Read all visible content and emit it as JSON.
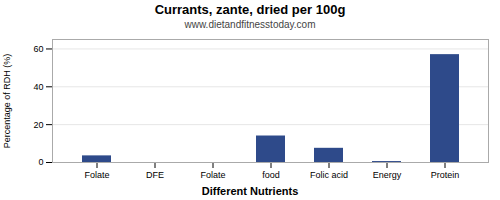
{
  "chart_data": {
    "type": "bar",
    "title": "Currants, zante, dried per 100g",
    "subtitle": "www.dietandfitnesstoday.com",
    "xlabel": "Different Nutrients",
    "ylabel": "Percentage of RDH (%)",
    "categories": [
      "Folate",
      "DFE",
      "Folate",
      "food",
      "Folic acid",
      "Energy",
      "Protein"
    ],
    "values": [
      3.5,
      0,
      0,
      14,
      7.5,
      0.5,
      57
    ],
    "color": "#2e4a8a",
    "ylim": [
      0,
      65
    ],
    "yticks": [
      0,
      20,
      40,
      60
    ],
    "grid": true
  }
}
